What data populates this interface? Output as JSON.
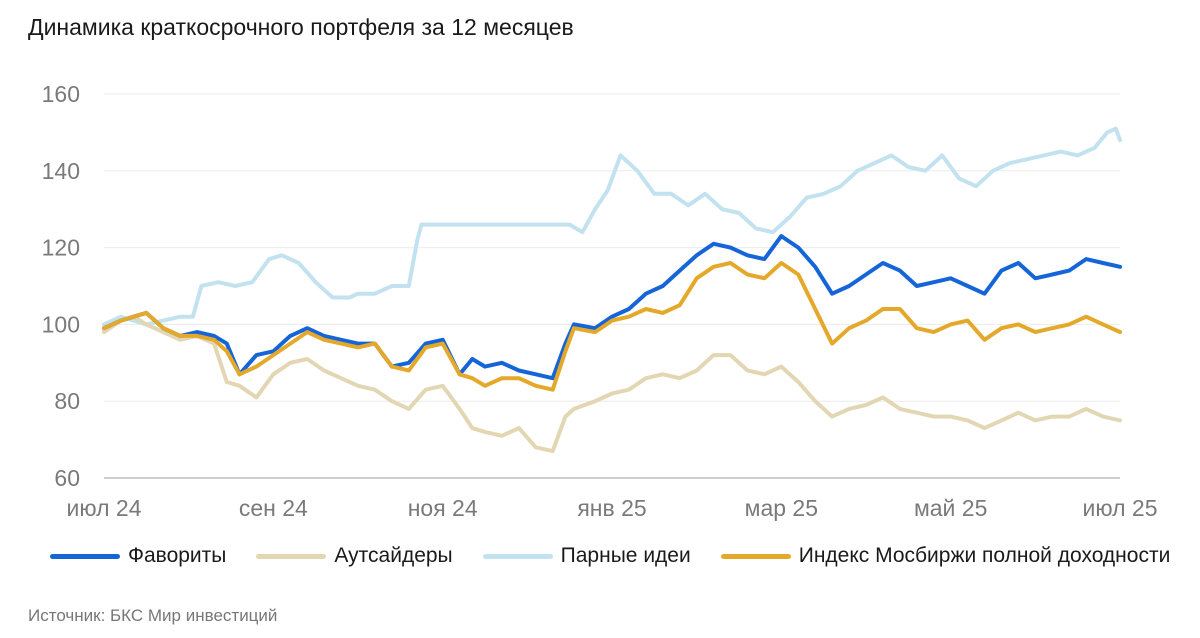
{
  "chart_data": {
    "type": "line",
    "title": "Динамика краткосрочного портфеля за 12 месяцев",
    "xlabel": "",
    "ylabel": "",
    "ylim": [
      60,
      160
    ],
    "yticks": [
      60,
      80,
      100,
      120,
      140,
      160
    ],
    "xlim": [
      0,
      12
    ],
    "xticks": [
      {
        "pos": 0,
        "label": "июл 24"
      },
      {
        "pos": 2,
        "label": "сен 24"
      },
      {
        "pos": 4,
        "label": "ноя 24"
      },
      {
        "pos": 6,
        "label": "янв 25"
      },
      {
        "pos": 8,
        "label": "мар 25"
      },
      {
        "pos": 10,
        "label": "май 25"
      },
      {
        "pos": 12,
        "label": "июл 25"
      }
    ],
    "grid": true,
    "legend_position": "bottom",
    "x_unit": "months since July 2024",
    "series": [
      {
        "name": "Фавориты",
        "color": "#1565d8",
        "x": [
          0,
          0.2,
          0.35,
          0.5,
          0.7,
          0.9,
          1.1,
          1.3,
          1.45,
          1.6,
          1.8,
          2.0,
          2.2,
          2.4,
          2.6,
          2.8,
          3.0,
          3.2,
          3.4,
          3.6,
          3.8,
          4.0,
          4.2,
          4.35,
          4.5,
          4.7,
          4.9,
          5.1,
          5.3,
          5.45,
          5.55,
          5.8,
          6.0,
          6.2,
          6.4,
          6.6,
          6.8,
          7.0,
          7.2,
          7.4,
          7.6,
          7.8,
          8.0,
          8.2,
          8.4,
          8.6,
          8.8,
          9.0,
          9.2,
          9.4,
          9.6,
          9.8,
          10.0,
          10.2,
          10.4,
          10.6,
          10.8,
          11.0,
          11.2,
          11.4,
          11.6,
          11.8,
          12.0
        ],
        "values": [
          99,
          101,
          102,
          103,
          99,
          97,
          98,
          97,
          95,
          87,
          92,
          93,
          97,
          99,
          97,
          96,
          95,
          95,
          89,
          90,
          95,
          96,
          87,
          91,
          89,
          90,
          88,
          87,
          86,
          95,
          100,
          99,
          102,
          104,
          108,
          110,
          114,
          118,
          121,
          120,
          118,
          117,
          123,
          120,
          115,
          108,
          110,
          113,
          116,
          114,
          110,
          111,
          112,
          110,
          108,
          114,
          116,
          112,
          113,
          114,
          117,
          116,
          115
        ]
      },
      {
        "name": "Аутсайдеры",
        "color": "#e3d6b3",
        "x": [
          0,
          0.2,
          0.35,
          0.5,
          0.7,
          0.9,
          1.1,
          1.3,
          1.45,
          1.6,
          1.8,
          2.0,
          2.2,
          2.4,
          2.6,
          2.8,
          3.0,
          3.2,
          3.4,
          3.6,
          3.8,
          4.0,
          4.2,
          4.35,
          4.5,
          4.7,
          4.9,
          5.1,
          5.3,
          5.45,
          5.55,
          5.8,
          6.0,
          6.2,
          6.4,
          6.6,
          6.8,
          7.0,
          7.2,
          7.4,
          7.6,
          7.8,
          8.0,
          8.2,
          8.4,
          8.6,
          8.8,
          9.0,
          9.2,
          9.4,
          9.6,
          9.8,
          10.0,
          10.2,
          10.4,
          10.6,
          10.8,
          11.0,
          11.2,
          11.4,
          11.6,
          11.8,
          12.0
        ],
        "values": [
          98,
          101,
          102,
          100,
          98,
          96,
          97,
          95,
          85,
          84,
          81,
          87,
          90,
          91,
          88,
          86,
          84,
          83,
          80,
          78,
          83,
          84,
          78,
          73,
          72,
          71,
          73,
          68,
          67,
          76,
          78,
          80,
          82,
          83,
          86,
          87,
          86,
          88,
          92,
          92,
          88,
          87,
          89,
          85,
          80,
          76,
          78,
          79,
          81,
          78,
          77,
          76,
          76,
          75,
          73,
          75,
          77,
          75,
          76,
          76,
          78,
          76,
          75
        ]
      },
      {
        "name": "Парные идеи",
        "color": "#c2e2f0",
        "x": [
          0,
          0.2,
          0.35,
          0.5,
          0.7,
          0.9,
          1.05,
          1.15,
          1.35,
          1.55,
          1.75,
          1.95,
          2.1,
          2.3,
          2.5,
          2.7,
          2.9,
          3.0,
          3.2,
          3.4,
          3.6,
          3.7,
          3.75,
          4.0,
          4.5,
          5.0,
          5.5,
          5.65,
          5.8,
          5.95,
          6.1,
          6.3,
          6.5,
          6.7,
          6.9,
          7.1,
          7.3,
          7.5,
          7.7,
          7.9,
          8.1,
          8.3,
          8.5,
          8.7,
          8.9,
          9.1,
          9.3,
          9.5,
          9.7,
          9.9,
          10.1,
          10.3,
          10.5,
          10.7,
          10.9,
          11.1,
          11.3,
          11.5,
          11.7,
          11.85,
          11.95,
          12.0
        ],
        "values": [
          100,
          102,
          101,
          100,
          101,
          102,
          102,
          110,
          111,
          110,
          111,
          117,
          118,
          116,
          111,
          107,
          107,
          108,
          108,
          110,
          110,
          122,
          126,
          126,
          126,
          126,
          126,
          124,
          130,
          135,
          144,
          140,
          134,
          134,
          131,
          134,
          130,
          129,
          125,
          124,
          128,
          133,
          134,
          136,
          140,
          142,
          144,
          141,
          140,
          144,
          138,
          136,
          140,
          142,
          143,
          144,
          145,
          144,
          146,
          150,
          151,
          148
        ]
      },
      {
        "name": "Индекс Мосбиржи полной доходности",
        "color": "#e4a82b",
        "x": [
          0,
          0.2,
          0.35,
          0.5,
          0.7,
          0.9,
          1.1,
          1.3,
          1.45,
          1.6,
          1.8,
          2.0,
          2.2,
          2.4,
          2.6,
          2.8,
          3.0,
          3.2,
          3.4,
          3.6,
          3.8,
          4.0,
          4.2,
          4.35,
          4.5,
          4.7,
          4.9,
          5.1,
          5.3,
          5.45,
          5.55,
          5.8,
          6.0,
          6.2,
          6.4,
          6.6,
          6.8,
          7.0,
          7.2,
          7.4,
          7.6,
          7.8,
          8.0,
          8.2,
          8.4,
          8.6,
          8.8,
          9.0,
          9.2,
          9.4,
          9.6,
          9.8,
          10.0,
          10.2,
          10.4,
          10.6,
          10.8,
          11.0,
          11.2,
          11.4,
          11.6,
          11.8,
          12.0
        ],
        "values": [
          99,
          101,
          102,
          103,
          99,
          97,
          97,
          96,
          93,
          87,
          89,
          92,
          95,
          98,
          96,
          95,
          94,
          95,
          89,
          88,
          94,
          95,
          87,
          86,
          84,
          86,
          86,
          84,
          83,
          93,
          99,
          98,
          101,
          102,
          104,
          103,
          105,
          112,
          115,
          116,
          113,
          112,
          116,
          113,
          104,
          95,
          99,
          101,
          104,
          104,
          99,
          98,
          100,
          101,
          96,
          99,
          100,
          98,
          99,
          100,
          102,
          100,
          98
        ]
      }
    ]
  },
  "source": "Источник: БКС Мир инвестиций"
}
